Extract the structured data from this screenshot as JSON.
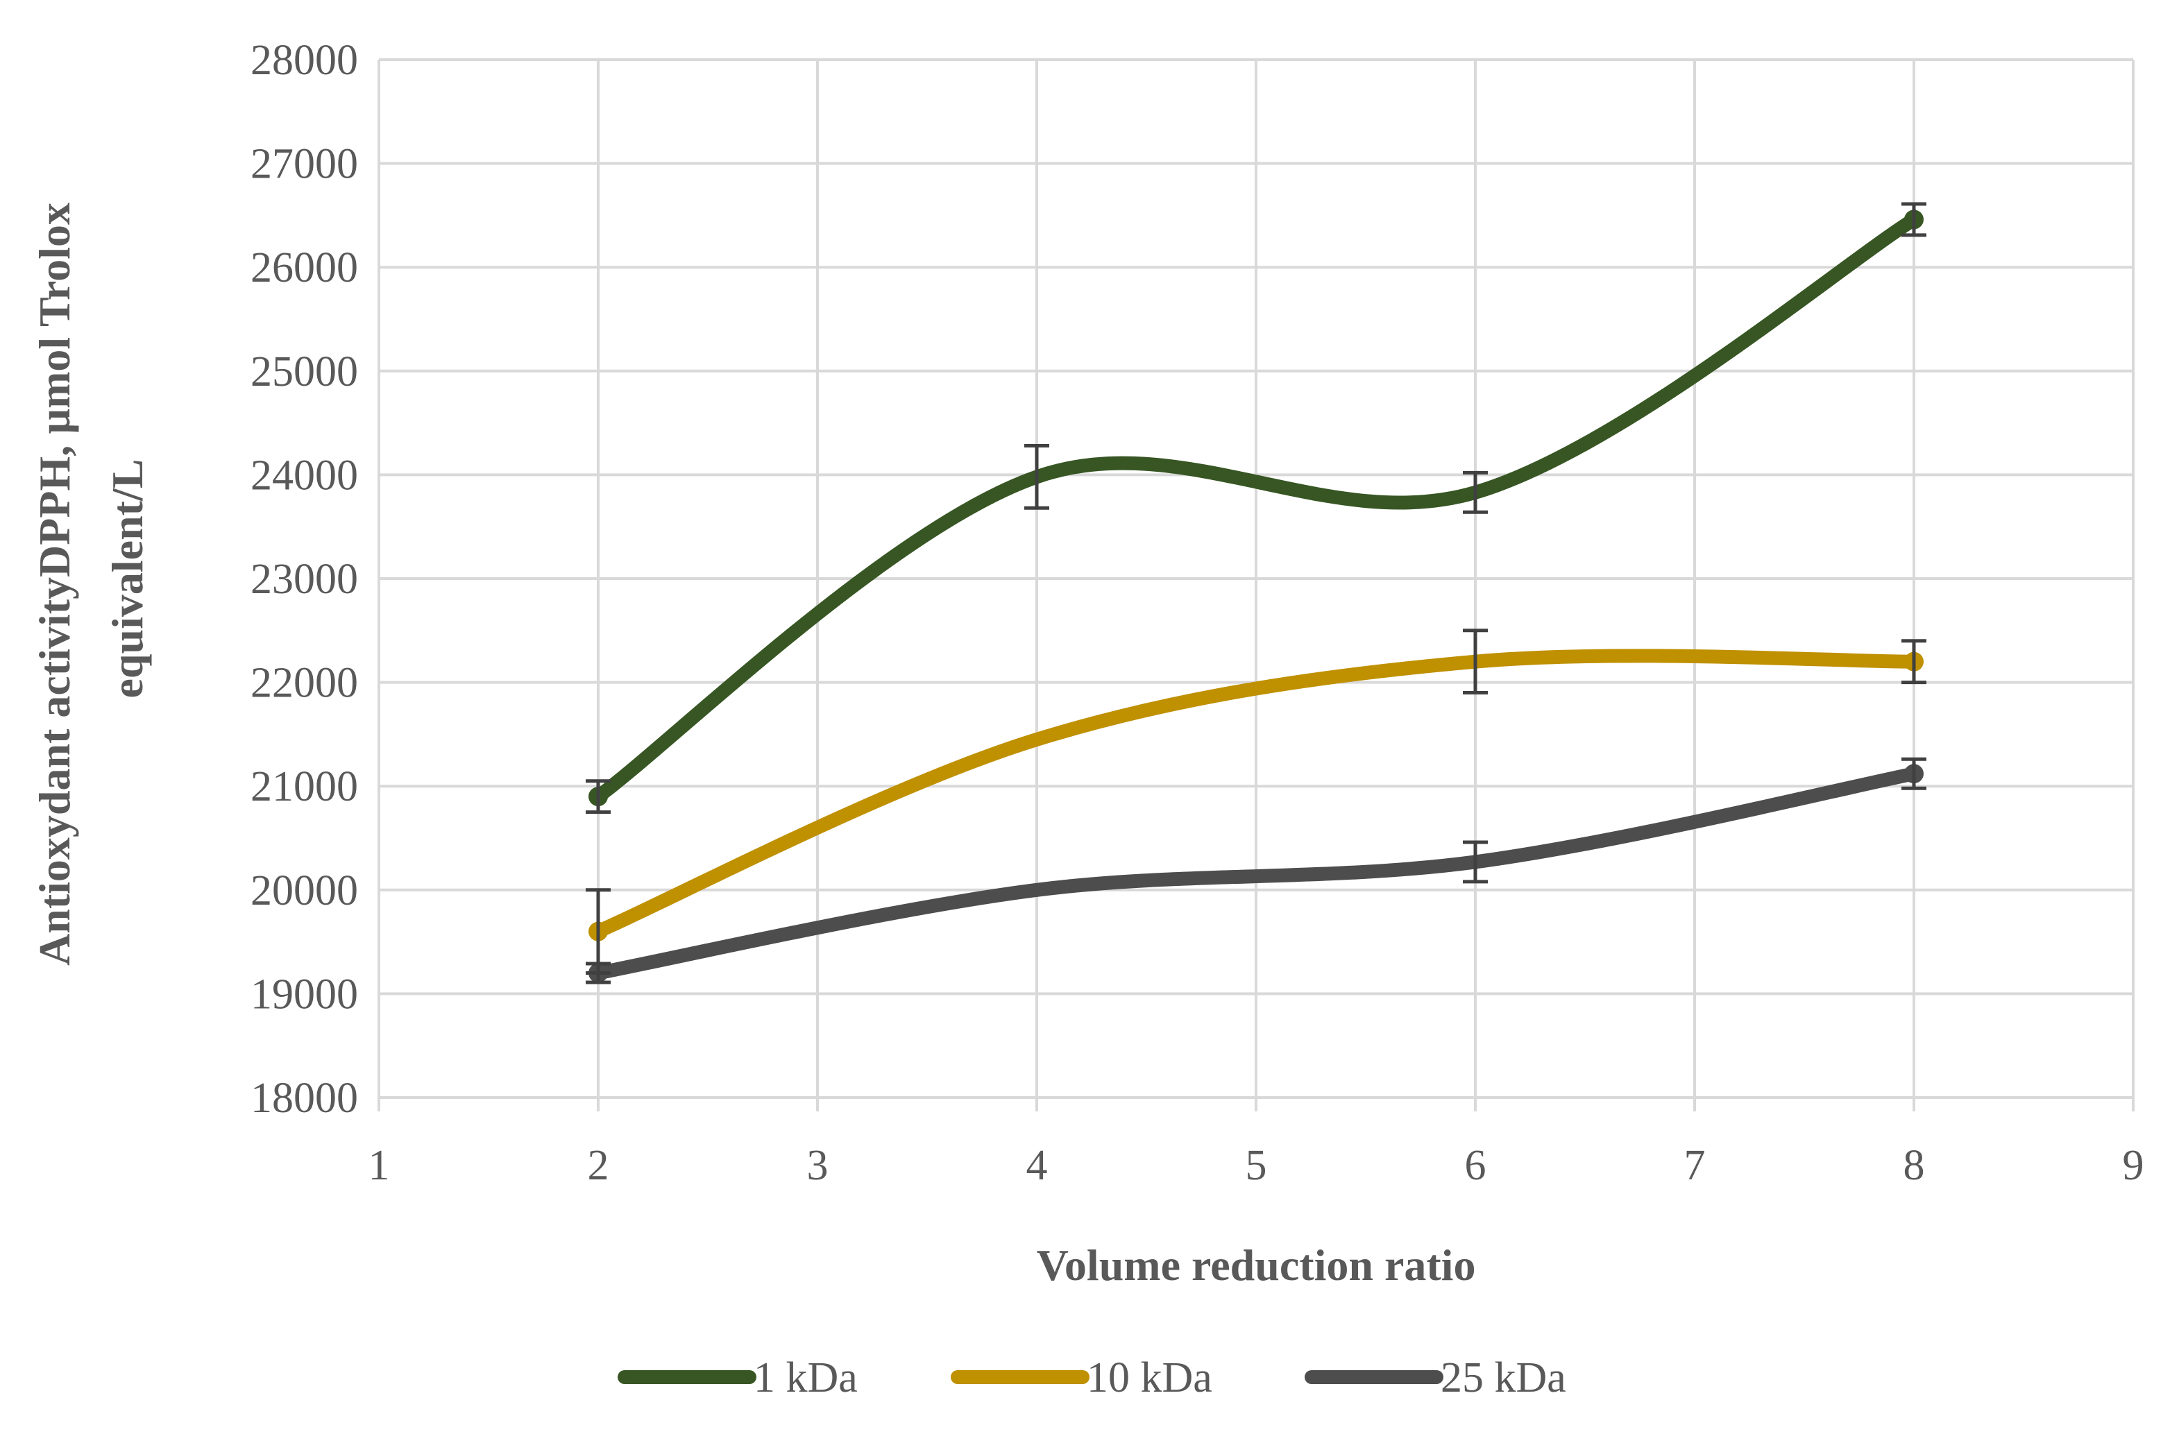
{
  "chart_data": {
    "type": "line",
    "title": "",
    "xlabel": "Volume reduction ratio",
    "ylabel_line1": "Antioxydant activityDPPH, µmol Trolox",
    "ylabel_line2": "equivalent/L",
    "xlim": [
      1,
      9
    ],
    "ylim": [
      18000,
      28000
    ],
    "x_ticks": [
      1,
      2,
      3,
      4,
      5,
      6,
      7,
      8,
      9
    ],
    "y_ticks": [
      18000,
      19000,
      20000,
      21000,
      22000,
      23000,
      24000,
      25000,
      26000,
      27000,
      28000
    ],
    "grid": true,
    "smooth": true,
    "legend_position": "bottom",
    "series": [
      {
        "name": "1 kDa",
        "color": "#375623",
        "x": [
          2,
          4,
          6,
          8
        ],
        "y": [
          20900,
          23980,
          23830,
          26460
        ],
        "err": [
          150,
          300,
          190,
          150
        ]
      },
      {
        "name": "10 kDa",
        "color": "#BF9000",
        "x": [
          2,
          4,
          6,
          8
        ],
        "y": [
          19600,
          21450,
          22200,
          22200
        ],
        "err": [
          400,
          0,
          300,
          200
        ]
      },
      {
        "name": "25 kDa",
        "color": "#4D4D4D",
        "x": [
          2,
          4,
          6,
          8
        ],
        "y": [
          19200,
          20000,
          20270,
          21120
        ],
        "err": [
          90,
          0,
          190,
          140
        ]
      }
    ]
  }
}
